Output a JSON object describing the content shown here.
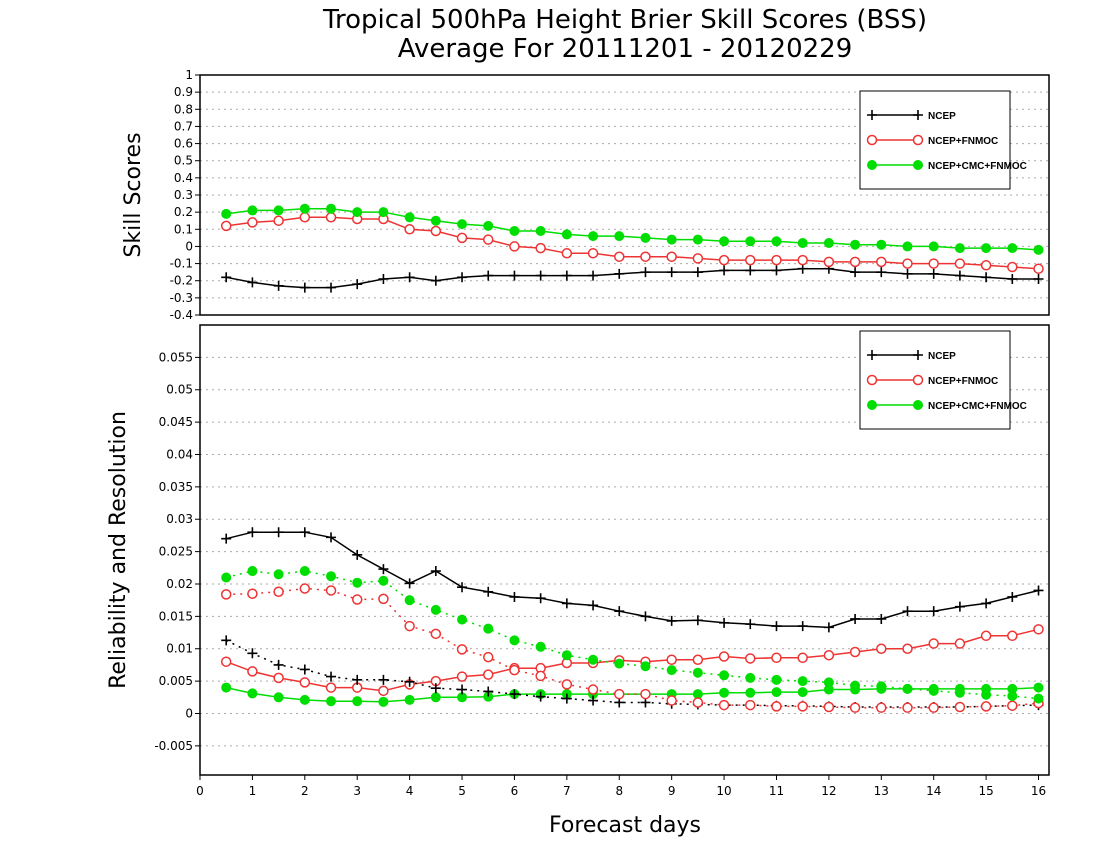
{
  "chart_data": [
    {
      "type": "line",
      "panel": "top",
      "title": "Tropical 500hPa Height Brier Skill Scores (BSS)",
      "subtitle": "Average For 20111201 - 20120229",
      "ylabel": "Skill Scores",
      "xlabel": "",
      "ylim": [
        -0.4,
        1
      ],
      "yticks": [
        "-0.4",
        "-0.3",
        "-0.2",
        "-0.1",
        "0",
        "0.1",
        "0.2",
        "0.3",
        "0.4",
        "0.5",
        "0.6",
        "0.7",
        "0.8",
        "0.9",
        "1"
      ],
      "grid": true,
      "legend_position": "top-right",
      "x": [
        0.5,
        1,
        1.5,
        2,
        2.5,
        3,
        3.5,
        4,
        4.5,
        5,
        5.5,
        6,
        6.5,
        7,
        7.5,
        8,
        8.5,
        9,
        9.5,
        10,
        10.5,
        11,
        11.5,
        12,
        12.5,
        13,
        13.5,
        14,
        14.5,
        15,
        15.5,
        16
      ],
      "series": [
        {
          "name": "NCEP",
          "color": "#000000",
          "marker": "plus",
          "line": "solid",
          "values": [
            -0.18,
            -0.21,
            -0.23,
            -0.24,
            -0.24,
            -0.22,
            -0.19,
            -0.18,
            -0.2,
            -0.18,
            -0.17,
            -0.17,
            -0.17,
            -0.17,
            -0.17,
            -0.16,
            -0.15,
            -0.15,
            -0.15,
            -0.14,
            -0.14,
            -0.14,
            -0.13,
            -0.13,
            -0.15,
            -0.15,
            -0.16,
            -0.16,
            -0.17,
            -0.18,
            -0.19,
            -0.19
          ]
        },
        {
          "name": "NCEP+FNMOC",
          "color": "#ee3333",
          "marker": "circle-open",
          "line": "solid",
          "values": [
            0.12,
            0.14,
            0.15,
            0.17,
            0.17,
            0.16,
            0.16,
            0.1,
            0.09,
            0.05,
            0.04,
            0,
            -0.01,
            -0.04,
            -0.04,
            -0.06,
            -0.06,
            -0.06,
            -0.07,
            -0.08,
            -0.08,
            -0.08,
            -0.08,
            -0.09,
            -0.09,
            -0.09,
            -0.1,
            -0.1,
            -0.1,
            -0.11,
            -0.12,
            -0.13
          ]
        },
        {
          "name": "NCEP+CMC+FNMOC",
          "color": "#00dd00",
          "marker": "circle-filled",
          "line": "solid",
          "values": [
            0.19,
            0.21,
            0.21,
            0.22,
            0.22,
            0.2,
            0.2,
            0.17,
            0.15,
            0.13,
            0.12,
            0.09,
            0.09,
            0.07,
            0.06,
            0.06,
            0.05,
            0.04,
            0.04,
            0.03,
            0.03,
            0.03,
            0.02,
            0.02,
            0.01,
            0.01,
            0.0,
            0.0,
            -0.01,
            -0.01,
            -0.01,
            -0.02
          ]
        }
      ]
    },
    {
      "type": "line",
      "panel": "bottom",
      "title": "",
      "ylabel": "Reliability and Resolution",
      "xlabel": "Forecast days",
      "ylim": [
        -0.0095,
        0.06
      ],
      "yticks": [
        "-0.005",
        "0",
        "0.005",
        "0.01",
        "0.015",
        "0.02",
        "0.025",
        "0.03",
        "0.035",
        "0.04",
        "0.045",
        "0.05",
        "0.055"
      ],
      "xlim": [
        0,
        16.2
      ],
      "xticks": [
        "0",
        "1",
        "2",
        "3",
        "4",
        "5",
        "6",
        "7",
        "8",
        "9",
        "10",
        "11",
        "12",
        "13",
        "14",
        "15",
        "16"
      ],
      "grid": true,
      "legend_position": "top-right",
      "x": [
        0.5,
        1,
        1.5,
        2,
        2.5,
        3,
        3.5,
        4,
        4.5,
        5,
        5.5,
        6,
        6.5,
        7,
        7.5,
        8,
        8.5,
        9,
        9.5,
        10,
        10.5,
        11,
        11.5,
        12,
        12.5,
        13,
        13.5,
        14,
        14.5,
        15,
        15.5,
        16
      ],
      "series": [
        {
          "name": "NCEP",
          "color": "#000000",
          "marker": "plus",
          "line": "solid",
          "values": [
            0.027,
            0.028,
            0.028,
            0.028,
            0.0272,
            0.0245,
            0.0223,
            0.0201,
            0.022,
            0.0195,
            0.0188,
            0.018,
            0.0178,
            0.017,
            0.0167,
            0.0158,
            0.015,
            0.0143,
            0.0144,
            0.014,
            0.0138,
            0.0135,
            0.0135,
            0.0133,
            0.0146,
            0.0146,
            0.0158,
            0.0158,
            0.0165,
            0.017,
            0.018,
            0.019
          ]
        },
        {
          "name": "NCEP+FNMOC",
          "color": "#ee3333",
          "marker": "circle-open",
          "line": "solid",
          "values": [
            0.008,
            0.0065,
            0.0055,
            0.0048,
            0.004,
            0.004,
            0.0035,
            0.0045,
            0.005,
            0.0057,
            0.006,
            0.007,
            0.007,
            0.0078,
            0.0078,
            0.0082,
            0.008,
            0.0083,
            0.0083,
            0.0088,
            0.0085,
            0.0086,
            0.0086,
            0.009,
            0.0095,
            0.01,
            0.01,
            0.0108,
            0.0108,
            0.012,
            0.012,
            0.013
          ]
        },
        {
          "name": "NCEP+CMC+FNMOC",
          "color": "#00dd00",
          "marker": "circle-filled",
          "line": "solid",
          "values": [
            0.004,
            0.0031,
            0.0025,
            0.0021,
            0.0019,
            0.0019,
            0.0018,
            0.0021,
            0.0025,
            0.0025,
            0.0026,
            0.003,
            0.003,
            0.003,
            0.003,
            0.003,
            0.003,
            0.003,
            0.003,
            0.0032,
            0.0032,
            0.0033,
            0.0033,
            0.0037,
            0.0037,
            0.0038,
            0.0038,
            0.0038,
            0.0038,
            0.0038,
            0.0038,
            0.004
          ]
        },
        {
          "color": "#000000",
          "marker": "plus",
          "line": "dotted",
          "values": [
            0.0113,
            0.0093,
            0.0075,
            0.0068,
            0.0057,
            0.0052,
            0.0052,
            0.0049,
            0.0039,
            0.0037,
            0.0034,
            0.003,
            0.0026,
            0.0023,
            0.002,
            0.0017,
            0.0017,
            0.0015,
            0.0014,
            0.0013,
            0.0013,
            0.0012,
            0.0012,
            0.0011,
            0.001,
            0.001,
            0.001,
            0.001,
            0.001,
            0.0011,
            0.0012,
            0.0013
          ]
        },
        {
          "color": "#ee3333",
          "marker": "circle-open",
          "line": "dotted",
          "values": [
            0.0184,
            0.0185,
            0.0188,
            0.0193,
            0.019,
            0.0176,
            0.0177,
            0.0135,
            0.0123,
            0.0099,
            0.0087,
            0.0067,
            0.0058,
            0.0045,
            0.0037,
            0.003,
            0.003,
            0.002,
            0.0017,
            0.0013,
            0.0013,
            0.0011,
            0.0011,
            0.001,
            0.0009,
            0.0009,
            0.0009,
            0.0009,
            0.001,
            0.0011,
            0.0012,
            0.0016
          ]
        },
        {
          "color": "#00dd00",
          "marker": "circle-filled",
          "line": "dotted",
          "values": [
            0.021,
            0.022,
            0.0215,
            0.022,
            0.0212,
            0.0202,
            0.0205,
            0.0175,
            0.016,
            0.0145,
            0.0131,
            0.0113,
            0.0103,
            0.009,
            0.0083,
            0.0077,
            0.0073,
            0.0067,
            0.0063,
            0.0059,
            0.0055,
            0.0052,
            0.005,
            0.0048,
            0.0043,
            0.0042,
            0.0038,
            0.0035,
            0.0032,
            0.0029,
            0.0027,
            0.0023
          ]
        }
      ]
    }
  ]
}
